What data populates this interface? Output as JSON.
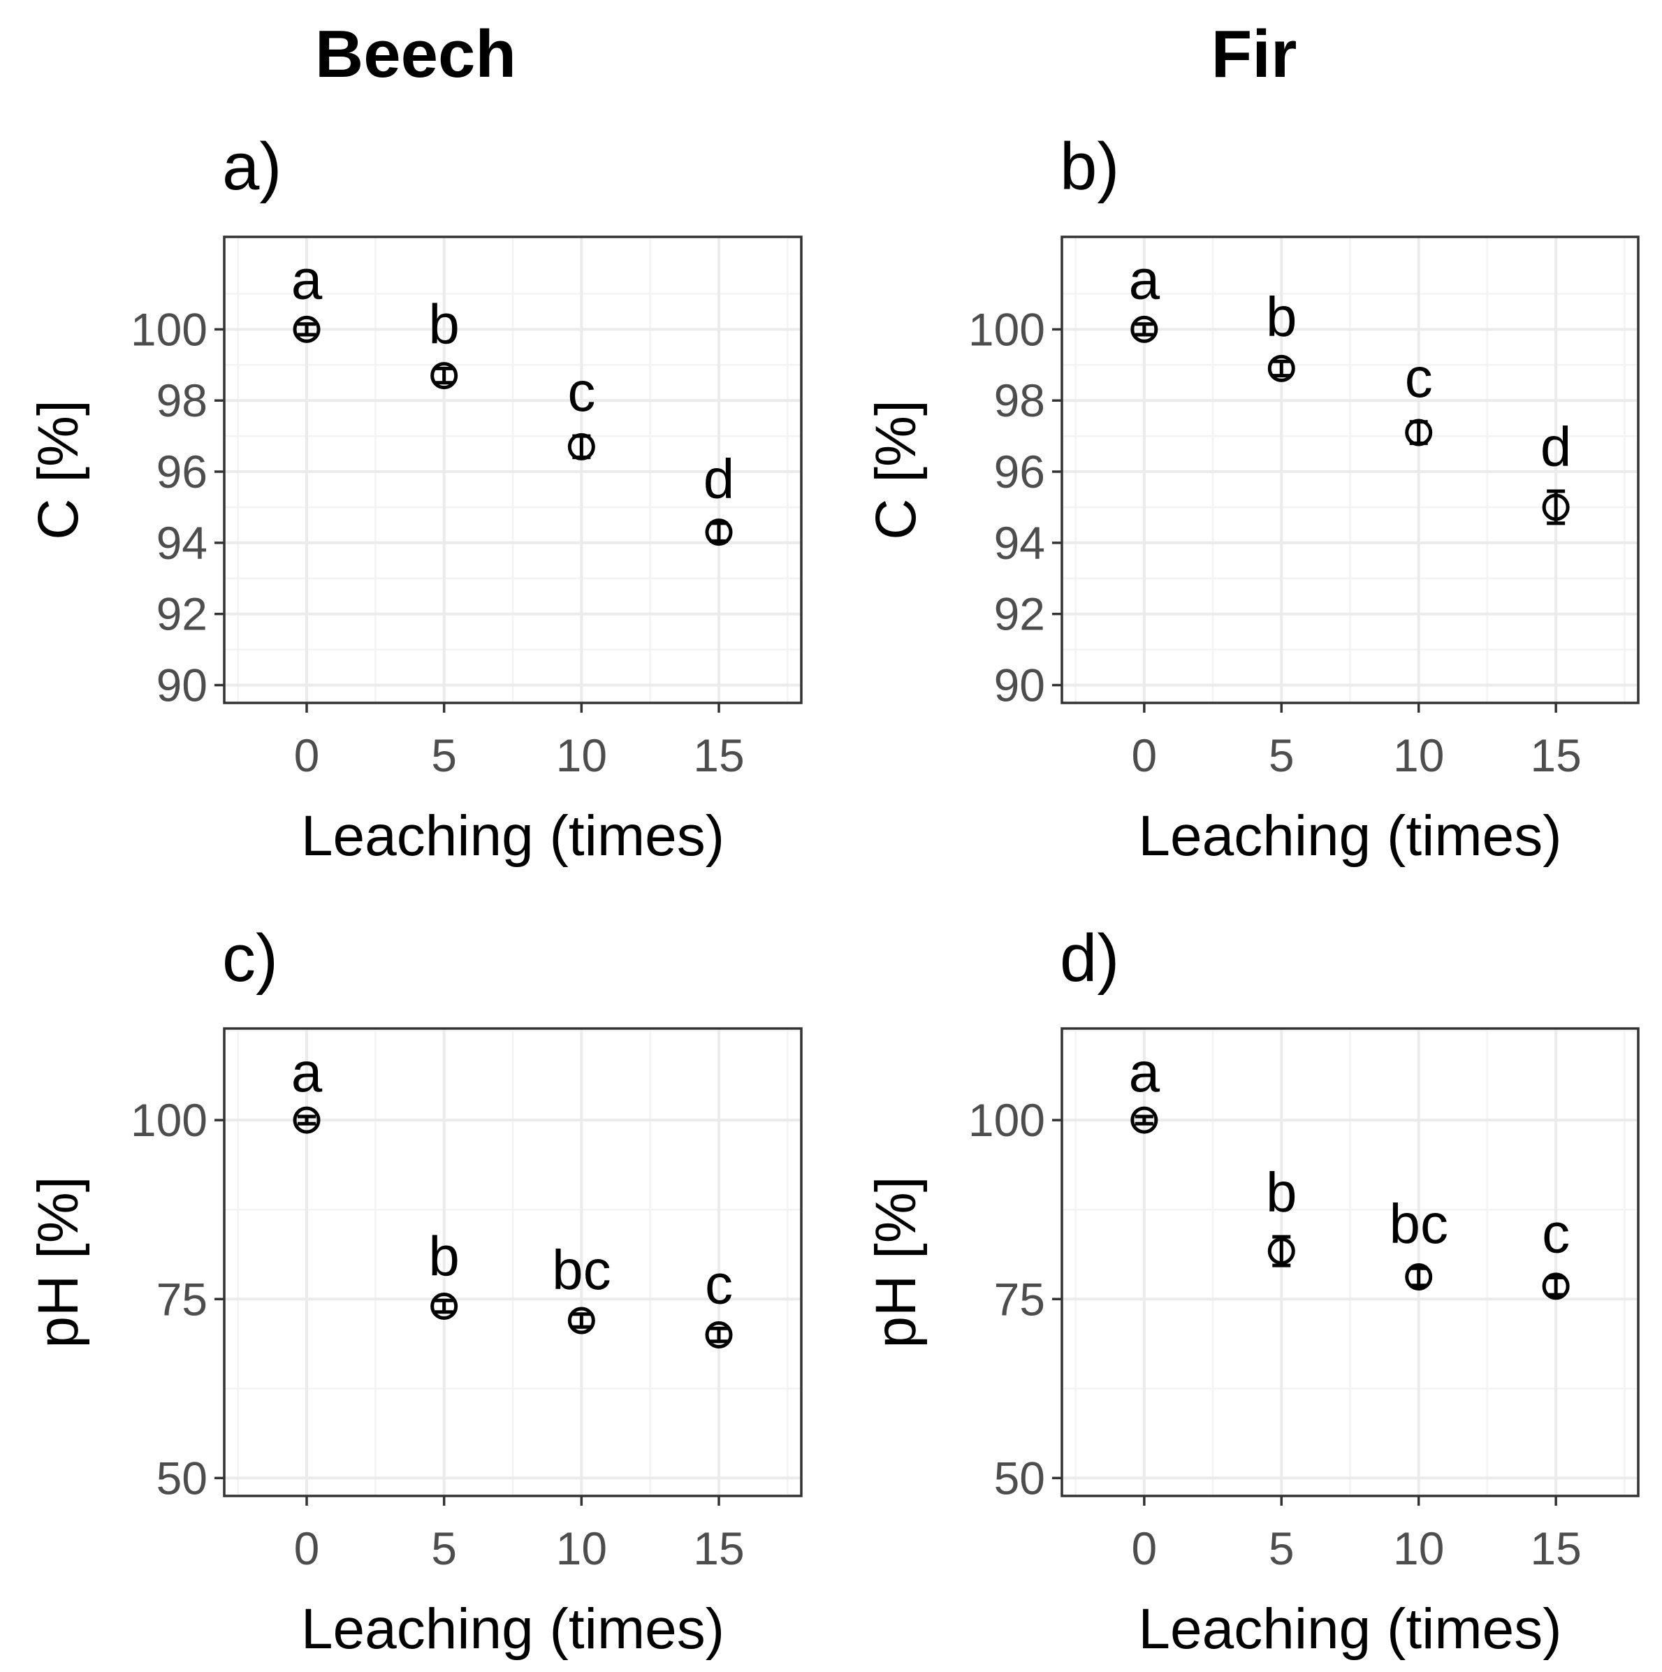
{
  "column_titles": [
    "Beech",
    "Fir"
  ],
  "chart_data": [
    {
      "type": "scatter",
      "panel": "a)",
      "column": "Beech",
      "x": [
        0,
        5,
        10,
        15
      ],
      "y": [
        100,
        98.7,
        96.7,
        94.3
      ],
      "y_error": [
        0.15,
        0.2,
        0.3,
        0.25
      ],
      "significance_letters": [
        "a",
        "b",
        "c",
        "d"
      ],
      "xlabel": "Leaching (times)",
      "ylabel": "C [%]",
      "xlim": [
        -3,
        18
      ],
      "ylim": [
        89.5,
        102.6
      ],
      "xticks": [
        0,
        5,
        10,
        15
      ],
      "yticks": [
        90,
        92,
        94,
        96,
        98,
        100
      ],
      "grid": true
    },
    {
      "type": "scatter",
      "panel": "b)",
      "column": "Fir",
      "x": [
        0,
        5,
        10,
        15
      ],
      "y": [
        100,
        98.9,
        97.1,
        95.0
      ],
      "y_error": [
        0.15,
        0.2,
        0.3,
        0.45
      ],
      "significance_letters": [
        "a",
        "b",
        "c",
        "d"
      ],
      "xlabel": "Leaching (times)",
      "ylabel": "C [%]",
      "xlim": [
        -3,
        18
      ],
      "ylim": [
        89.5,
        102.6
      ],
      "xticks": [
        0,
        5,
        10,
        15
      ],
      "yticks": [
        90,
        92,
        94,
        96,
        98,
        100
      ],
      "grid": true
    },
    {
      "type": "scatter",
      "panel": "c)",
      "column": "Beech",
      "x": [
        0,
        5,
        10,
        15
      ],
      "y": [
        100,
        74,
        72,
        70
      ],
      "y_error": [
        0.5,
        0.8,
        0.9,
        0.9
      ],
      "significance_letters": [
        "a",
        "b",
        "bc",
        "c"
      ],
      "xlabel": "Leaching (times)",
      "ylabel": "pH [%]",
      "xlim": [
        -3,
        18
      ],
      "ylim": [
        47.5,
        112.8
      ],
      "xticks": [
        0,
        5,
        10,
        15
      ],
      "yticks": [
        50,
        75,
        100
      ],
      "grid": true
    },
    {
      "type": "scatter",
      "panel": "d)",
      "column": "Fir",
      "x": [
        0,
        5,
        10,
        15
      ],
      "y": [
        100,
        81.7,
        78.1,
        76.8
      ],
      "y_error": [
        0.5,
        2.0,
        1.2,
        1.2
      ],
      "significance_letters": [
        "a",
        "b",
        "bc",
        "c"
      ],
      "xlabel": "Leaching (times)",
      "ylabel": "pH [%]",
      "xlim": [
        -3,
        18
      ],
      "ylim": [
        47.5,
        112.8
      ],
      "xticks": [
        0,
        5,
        10,
        15
      ],
      "yticks": [
        50,
        75,
        100
      ],
      "grid": true
    }
  ]
}
